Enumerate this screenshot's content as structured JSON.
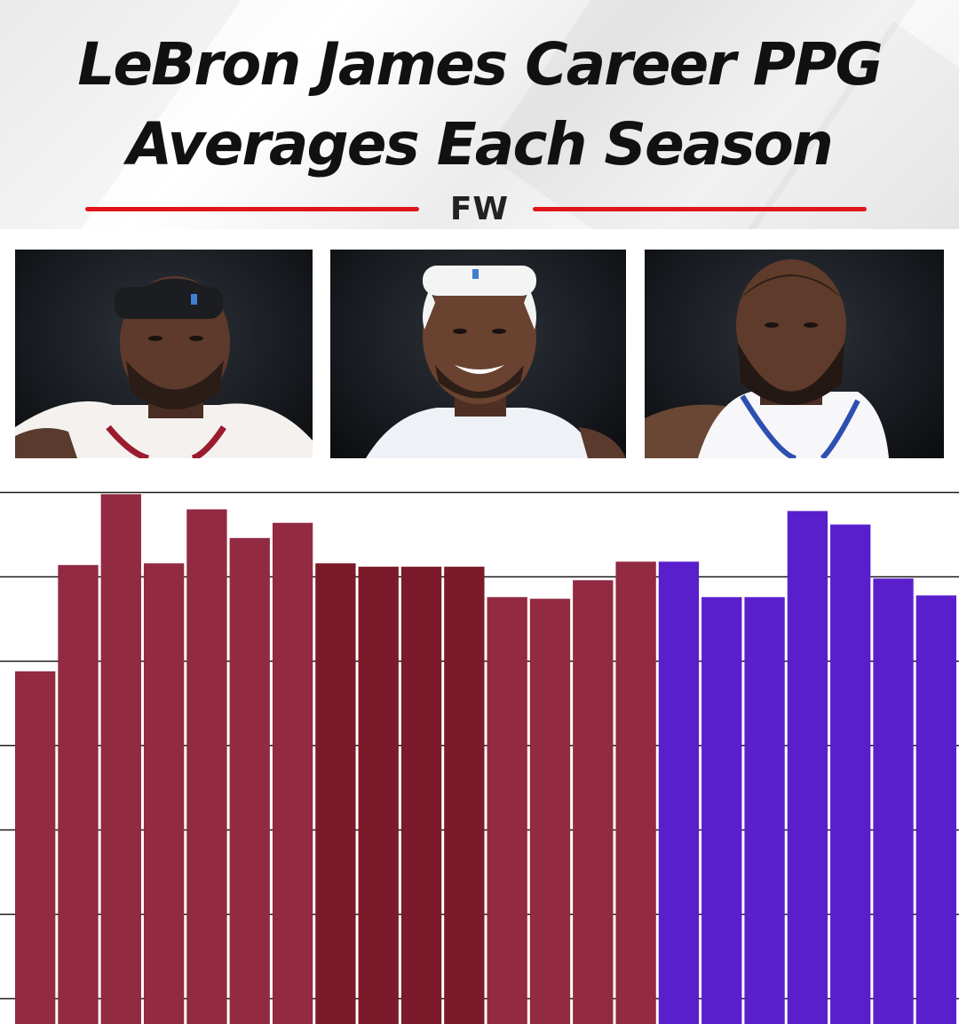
{
  "header": {
    "title_line1": "LeBron James Career PPG",
    "title_line2": "Averages Each Season",
    "brand": "FW",
    "rule_color": "#e1141b"
  },
  "photos": [
    {
      "name": "lebron-heat-era",
      "jersey": "#ffffff",
      "trim": "#9b1b2e",
      "accessory": "headband-dark"
    },
    {
      "name": "lebron-cavaliers-era",
      "jersey": "#f2f4f7",
      "trim": "#d7dbe2",
      "accessory": "headband-white"
    },
    {
      "name": "lebron-lakers-era",
      "jersey": "#ffffff",
      "trim": "#2d4fb0",
      "accessory": "beard"
    }
  ],
  "chart_data": {
    "type": "bar",
    "title": "",
    "xlabel": "",
    "ylabel": "",
    "ylim": [
      0,
      31.5
    ],
    "grid": true,
    "gridlines": [
      31.5,
      26.5,
      21.5,
      16.5,
      11.5,
      6.5,
      1.5
    ],
    "series": [
      {
        "values": [
          20.9,
          27.2,
          31.4,
          27.3,
          30.5,
          28.8,
          29.7,
          27.3,
          27.1,
          27.1,
          27.1,
          25.3,
          25.2,
          26.3,
          27.4,
          27.4,
          25.3,
          25.3,
          30.4,
          29.6,
          26.4,
          25.4
        ],
        "colors": [
          "#922a41",
          "#922a41",
          "#922a41",
          "#922a41",
          "#922a41",
          "#922a41",
          "#922a41",
          "#7b1a28",
          "#7b1a28",
          "#7b1a28",
          "#7b1a28",
          "#922a41",
          "#922a41",
          "#922a41",
          "#922a41",
          "#5a1fcc",
          "#5a1fcc",
          "#5a1fcc",
          "#5a1fcc",
          "#5a1fcc",
          "#5a1fcc",
          "#5a1fcc"
        ]
      }
    ],
    "gridline_color": "#1a1a1a",
    "separator_color": "#ffffff"
  }
}
